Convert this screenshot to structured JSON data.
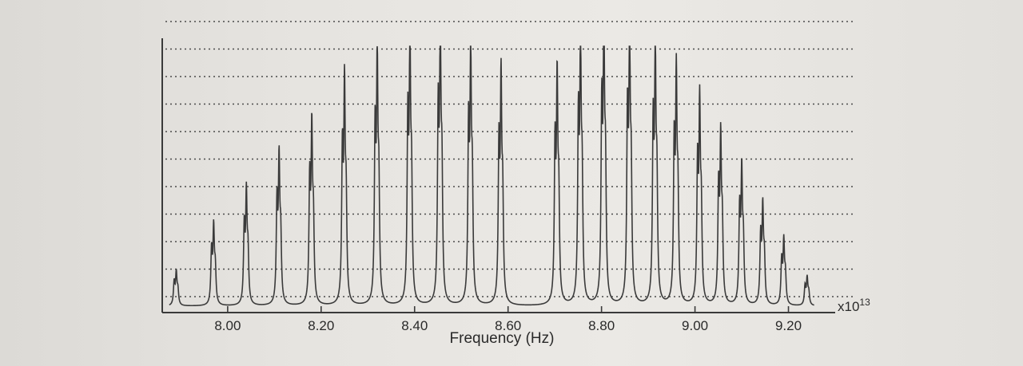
{
  "chart_data": {
    "type": "line",
    "title": "",
    "xlabel": "Frequency (Hz)",
    "ylabel": "",
    "x_multiplier_label": "x10",
    "x_multiplier_exponent": "13",
    "xlim": [
      7.86,
      9.3
    ],
    "ylim": [
      0,
      1.0
    ],
    "x_ticks": [
      8.0,
      8.2,
      8.4,
      8.6,
      8.8,
      9.0,
      9.2
    ],
    "x_tick_labels": [
      "8.00",
      "8.20",
      "8.40",
      "8.60",
      "8.80",
      "9.00",
      "9.20"
    ],
    "grid": "horizontal dotted",
    "line_color": "#3a3a3a",
    "series": [
      {
        "peaks": [
          {
            "x": 7.89,
            "y": 0.12
          },
          {
            "x": 7.97,
            "y": 0.28
          },
          {
            "x": 8.04,
            "y": 0.4
          },
          {
            "x": 8.11,
            "y": 0.52
          },
          {
            "x": 8.18,
            "y": 0.63
          },
          {
            "x": 8.25,
            "y": 0.78
          },
          {
            "x": 8.32,
            "y": 0.88
          },
          {
            "x": 8.39,
            "y": 0.93
          },
          {
            "x": 8.455,
            "y": 0.97
          },
          {
            "x": 8.52,
            "y": 0.89
          },
          {
            "x": 8.585,
            "y": 0.8
          },
          {
            "x": 8.705,
            "y": 0.8
          },
          {
            "x": 8.755,
            "y": 0.93
          },
          {
            "x": 8.805,
            "y": 0.99
          },
          {
            "x": 8.86,
            "y": 0.96
          },
          {
            "x": 8.915,
            "y": 0.9
          },
          {
            "x": 8.96,
            "y": 0.81
          },
          {
            "x": 9.01,
            "y": 0.71
          },
          {
            "x": 9.055,
            "y": 0.59
          },
          {
            "x": 9.1,
            "y": 0.48
          },
          {
            "x": 9.145,
            "y": 0.35
          },
          {
            "x": 9.19,
            "y": 0.23
          },
          {
            "x": 9.24,
            "y": 0.1
          }
        ]
      }
    ]
  }
}
